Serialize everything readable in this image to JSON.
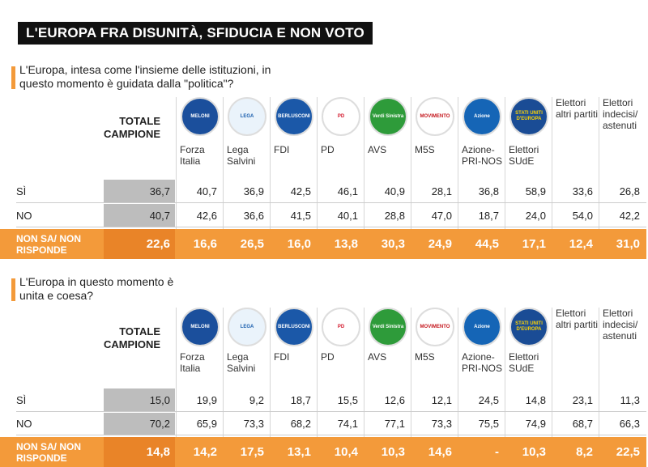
{
  "title": "L'EUROPA FRA DISUNITÀ, SFIDUCIA E NON VOTO",
  "sections": [
    {
      "question": "L'Europa, intesa  come l'insieme delle istituzioni, in questo momento è guidata dalla \"politica\"?",
      "total_label": "TOTALE CAMPIONE",
      "columns": [
        {
          "name": "Forza Italia",
          "logo": "MELONI"
        },
        {
          "name": "Lega Salvini",
          "logo": "LEGA"
        },
        {
          "name": "FDI",
          "logo": "BERLUSCONI"
        },
        {
          "name": "PD",
          "logo": "PD"
        },
        {
          "name": "AVS",
          "logo": "Verdi Sinistra"
        },
        {
          "name": "M5S",
          "logo": "MOVIMENTO"
        },
        {
          "name": "Azione-PRI-NOS",
          "logo": "Azione"
        },
        {
          "name": "Elettori SUdE",
          "logo": "STATI UNITI D'EUROPA"
        },
        {
          "name": "Elettori altri partiti"
        },
        {
          "name": "Elettori indecisi/ astenuti"
        }
      ],
      "rows": [
        {
          "label": "SÌ",
          "total": "36,7",
          "values": [
            "40,7",
            "36,9",
            "42,5",
            "46,1",
            "40,9",
            "28,1",
            "36,8",
            "58,9",
            "33,6",
            "26,8"
          ]
        },
        {
          "label": "NO",
          "total": "40,7",
          "values": [
            "42,6",
            "36,6",
            "41,5",
            "40,1",
            "28,8",
            "47,0",
            "18,7",
            "24,0",
            "54,0",
            "42,2"
          ]
        },
        {
          "label": "NON SA/ NON RISPONDE",
          "total": "22,6",
          "values": [
            "16,6",
            "26,5",
            "16,0",
            "13,8",
            "30,3",
            "24,9",
            "44,5",
            "17,1",
            "12,4",
            "31,0"
          ]
        }
      ]
    },
    {
      "question": "L'Europa in questo momento è unita e coesa?",
      "total_label": "TOTALE CAMPIONE",
      "columns": [
        {
          "name": "Forza Italia",
          "logo": "MELONI"
        },
        {
          "name": "Lega Salvini",
          "logo": "LEGA"
        },
        {
          "name": "FDI",
          "logo": "BERLUSCONI"
        },
        {
          "name": "PD",
          "logo": "PD"
        },
        {
          "name": "AVS",
          "logo": "Verdi Sinistra"
        },
        {
          "name": "M5S",
          "logo": "MOVIMENTO"
        },
        {
          "name": "Azione-PRI-NOS",
          "logo": "Azione"
        },
        {
          "name": "Elettori SUdE",
          "logo": "STATI UNITI D'EUROPA"
        },
        {
          "name": "Elettori altri partiti"
        },
        {
          "name": "Elettori indecisi/ astenuti"
        }
      ],
      "rows": [
        {
          "label": "SÌ",
          "total": "15,0",
          "values": [
            "19,9",
            "9,2",
            "18,7",
            "15,5",
            "12,6",
            "12,1",
            "24,5",
            "14,8",
            "23,1",
            "11,3"
          ]
        },
        {
          "label": "NO",
          "total": "70,2",
          "values": [
            "65,9",
            "73,3",
            "68,2",
            "74,1",
            "77,1",
            "73,3",
            "75,5",
            "74,9",
            "68,7",
            "66,3"
          ]
        },
        {
          "label": "NON SA/ NON RISPONDE",
          "total": "14,8",
          "values": [
            "14,2",
            "17,5",
            "13,1",
            "10,4",
            "10,3",
            "14,6",
            "-",
            "10,3",
            "8,2",
            "22,5"
          ]
        }
      ]
    }
  ]
}
